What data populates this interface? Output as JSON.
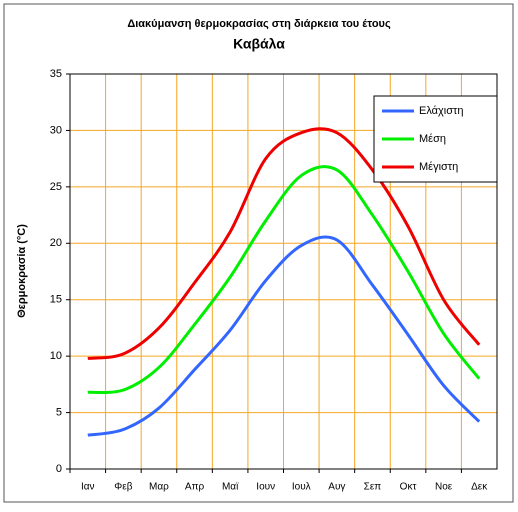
{
  "chart_data": {
    "type": "line",
    "title": "Διακύμανση θερμοκρασίας στη διάρκεια του έτους",
    "subtitle": "Καβάλα",
    "y_label": "Θερμοκρασία (°C)",
    "categories": [
      "Ιαν",
      "Φεβ",
      "Μαρ",
      "Απρ",
      "Μαϊ",
      "Ιουν",
      "Ιουλ",
      "Αυγ",
      "Σεπ",
      "Οκτ",
      "Νοε",
      "Δεκ"
    ],
    "series": [
      {
        "name": "Ελάχιστη",
        "color": "#3366ff",
        "values": [
          3.0,
          3.5,
          5.4,
          8.8,
          12.3,
          16.7,
          19.8,
          20.3,
          16.3,
          11.9,
          7.4,
          4.2
        ]
      },
      {
        "name": "Μέση",
        "color": "#00ee00",
        "values": [
          6.8,
          7.0,
          9.0,
          12.8,
          17.0,
          22.0,
          26.0,
          26.5,
          22.5,
          17.5,
          12.0,
          8.0
        ]
      },
      {
        "name": "Μέγιστη",
        "color": "#ee0000",
        "values": [
          9.8,
          10.2,
          12.5,
          16.5,
          21.0,
          27.5,
          29.8,
          29.8,
          26.5,
          21.5,
          15.0,
          11.0
        ]
      }
    ],
    "ylim": [
      0,
      35
    ],
    "yticks": [
      0,
      5,
      10,
      15,
      20,
      25,
      30,
      35
    ],
    "grid": true,
    "grid_color": "#f5a623",
    "legend": "upper right"
  }
}
